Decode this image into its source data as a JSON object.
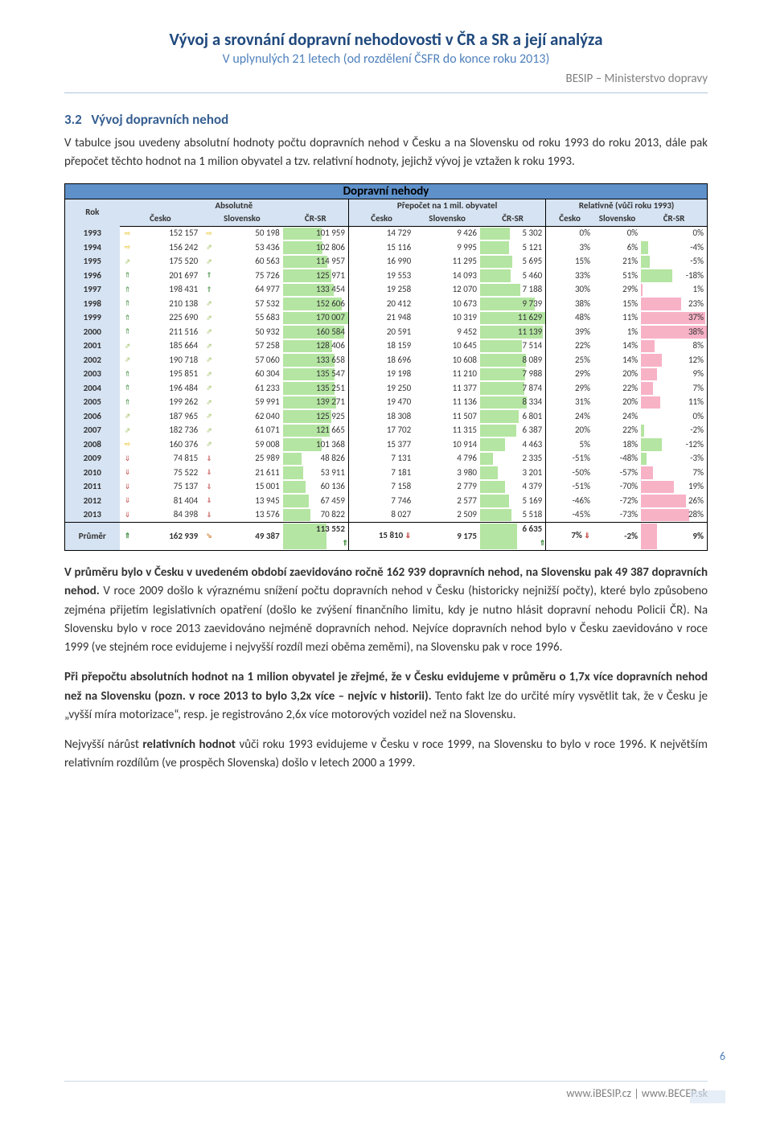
{
  "header": {
    "title": "Vývoj a srovnání dopravní nehodovosti v ČR a SR a její analýza",
    "subtitle": "V uplynulých 21 letech (od rozdělení ČSFR do konce roku 2013)",
    "org": "BESIP – Ministerstvo dopravy"
  },
  "section": {
    "num": "3.2",
    "title": "Vývoj dopravních nehod"
  },
  "para1": "V tabulce jsou uvedeny absolutní hodnoty počtu dopravních nehod v Česku a na Slovensku od roku 1993 do roku 2013, dále pak přepočet těchto hodnot na 1 milion obyvatel a tzv. relativní hodnoty, jejichž vývoj je vztažen k roku 1993.",
  "para2a": "V průměru bylo v Česku v uvedeném období zaevidováno ročně 162 939 dopravních nehod, na Slovensku pak 49 387 dopravních nehod.",
  "para2b": " V roce 2009 došlo k výraznému snížení počtu dopravních nehod v Česku (historicky nejnižší počty), které bylo způsobeno zejména přijetím legislativních opatření (došlo ke zvýšení finančního limitu, kdy je nutno hlásit dopravní nehodu Policii ČR). Na Slovensku bylo v roce 2013 zaevidováno nejméně dopravních nehod. Nejvíce dopravních nehod bylo v Česku zaevidováno v roce 1999 (ve stejném roce evidujeme i nejvyšší rozdíl mezi oběma zeměmi), na Slovensku pak v roce 1996.",
  "para3a": "Při přepočtu absolutních hodnot na 1 milion obyvatel je zřejmé, že v Česku evidujeme v průměru o 1,7x více dopravních nehod než na Slovensku (pozn. v roce 2013 to bylo 3,2x více – nejvíc v historii).",
  "para3b": " Tento fakt lze do určité míry vysvětlit tak, že v Česku je „vyšší míra motorizace“, resp. je registrováno 2,6x více motorových vozidel než na Slovensku.",
  "para4a": "Nejvyšší nárůst ",
  "para4b": "relativních hodnot",
  "para4c": " vůči roku 1993 evidujeme v Česku v roce 1999, na Slovensku to bylo v roce 1996. K největším relativním rozdílům (ve prospěch Slovenska) došlo v letech 2000 a 1999.",
  "page_num": "6",
  "footer": "www.iBESIP.cz | www.BECEP.sk",
  "table": {
    "title": "Dopravní nehody",
    "rok_label": "Rok",
    "groups": [
      "Absolutně",
      "Přepočet na 1 mil. obyvatel",
      "Relativně (vůči roku 1993)"
    ],
    "cols": [
      "Česko",
      "Slovensko",
      "ČR-SR",
      "Česko",
      "Slovensko",
      "ČR-SR",
      "Česko",
      "Slovensko",
      "ČR-SR"
    ],
    "avg_label": "Průměr",
    "bar_colors": {
      "green": "#b4e5a2",
      "pink": "#f7b2c6"
    },
    "arrow_colors": {
      "flat": "#e6b800",
      "up_soft": "#9fbf60",
      "up": "#3c8c3c",
      "down_soft": "#d99a5b",
      "down": "#c24444"
    },
    "max": {
      "crsr_abs": 170007,
      "crsr_per": 11629,
      "rel_diff": 38
    },
    "rows": [
      {
        "y": "1993",
        "a1": "⇨",
        "cz": "152 157",
        "a2": "⇨",
        "sk": "50 198",
        "d": "101 959",
        "pcz": "14 729",
        "psk": "9 426",
        "pd": "5 302",
        "rcz": "0%",
        "rsk": "0%",
        "rd": "0%",
        "rdv": 0
      },
      {
        "y": "1994",
        "a1": "⇨",
        "cz": "156 242",
        "a2": "⇗",
        "sk": "53 436",
        "d": "102 806",
        "pcz": "15 116",
        "psk": "9 995",
        "pd": "5 121",
        "rcz": "3%",
        "rsk": "6%",
        "rd": "-4%",
        "rdv": -4
      },
      {
        "y": "1995",
        "a1": "⇗",
        "cz": "175 520",
        "a2": "⇗",
        "sk": "60 563",
        "d": "114 957",
        "pcz": "16 990",
        "psk": "11 295",
        "pd": "5 695",
        "rcz": "15%",
        "rsk": "21%",
        "rd": "-5%",
        "rdv": -5
      },
      {
        "y": "1996",
        "a1": "⇑",
        "cz": "201 697",
        "a2": "⇑",
        "sk": "75 726",
        "d": "125 971",
        "pcz": "19 553",
        "psk": "14 093",
        "pd": "5 460",
        "rcz": "33%",
        "rsk": "51%",
        "rd": "-18%",
        "rdv": -18
      },
      {
        "y": "1997",
        "a1": "⇑",
        "cz": "198 431",
        "a2": "⇑",
        "sk": "64 977",
        "d": "133 454",
        "pcz": "19 258",
        "psk": "12 070",
        "pd": "7 188",
        "rcz": "30%",
        "rsk": "29%",
        "rd": "1%",
        "rdv": 1
      },
      {
        "y": "1998",
        "a1": "⇑",
        "cz": "210 138",
        "a2": "⇗",
        "sk": "57 532",
        "d": "152 606",
        "pcz": "20 412",
        "psk": "10 673",
        "pd": "9 739",
        "rcz": "38%",
        "rsk": "15%",
        "rd": "23%",
        "rdv": 23
      },
      {
        "y": "1999",
        "a1": "⇑",
        "cz": "225 690",
        "a2": "⇗",
        "sk": "55 683",
        "d": "170 007",
        "pcz": "21 948",
        "psk": "10 319",
        "pd": "11 629",
        "rcz": "48%",
        "rsk": "11%",
        "rd": "37%",
        "rdv": 37
      },
      {
        "y": "2000",
        "a1": "⇑",
        "cz": "211 516",
        "a2": "⇗",
        "sk": "50 932",
        "d": "160 584",
        "pcz": "20 591",
        "psk": "9 452",
        "pd": "11 139",
        "rcz": "39%",
        "rsk": "1%",
        "rd": "38%",
        "rdv": 38
      },
      {
        "y": "2001",
        "a1": "⇗",
        "cz": "185 664",
        "a2": "⇗",
        "sk": "57 258",
        "d": "128 406",
        "pcz": "18 159",
        "psk": "10 645",
        "pd": "7 514",
        "rcz": "22%",
        "rsk": "14%",
        "rd": "8%",
        "rdv": 8
      },
      {
        "y": "2002",
        "a1": "⇗",
        "cz": "190 718",
        "a2": "⇗",
        "sk": "57 060",
        "d": "133 658",
        "pcz": "18 696",
        "psk": "10 608",
        "pd": "8 089",
        "rcz": "25%",
        "rsk": "14%",
        "rd": "12%",
        "rdv": 12
      },
      {
        "y": "2003",
        "a1": "⇑",
        "cz": "195 851",
        "a2": "⇗",
        "sk": "60 304",
        "d": "135 547",
        "pcz": "19 198",
        "psk": "11 210",
        "pd": "7 988",
        "rcz": "29%",
        "rsk": "20%",
        "rd": "9%",
        "rdv": 9
      },
      {
        "y": "2004",
        "a1": "⇑",
        "cz": "196 484",
        "a2": "⇗",
        "sk": "61 233",
        "d": "135 251",
        "pcz": "19 250",
        "psk": "11 377",
        "pd": "7 874",
        "rcz": "29%",
        "rsk": "22%",
        "rd": "7%",
        "rdv": 7
      },
      {
        "y": "2005",
        "a1": "⇑",
        "cz": "199 262",
        "a2": "⇗",
        "sk": "59 991",
        "d": "139 271",
        "pcz": "19 470",
        "psk": "11 136",
        "pd": "8 334",
        "rcz": "31%",
        "rsk": "20%",
        "rd": "11%",
        "rdv": 11
      },
      {
        "y": "2006",
        "a1": "⇗",
        "cz": "187 965",
        "a2": "⇗",
        "sk": "62 040",
        "d": "125 925",
        "pcz": "18 308",
        "psk": "11 507",
        "pd": "6 801",
        "rcz": "24%",
        "rsk": "24%",
        "rd": "0%",
        "rdv": 0
      },
      {
        "y": "2007",
        "a1": "⇗",
        "cz": "182 736",
        "a2": "⇗",
        "sk": "61 071",
        "d": "121 665",
        "pcz": "17 702",
        "psk": "11 315",
        "pd": "6 387",
        "rcz": "20%",
        "rsk": "22%",
        "rd": "-2%",
        "rdv": -2
      },
      {
        "y": "2008",
        "a1": "⇨",
        "cz": "160 376",
        "a2": "⇗",
        "sk": "59 008",
        "d": "101 368",
        "pcz": "15 377",
        "psk": "10 914",
        "pd": "4 463",
        "rcz": "5%",
        "rsk": "18%",
        "rd": "-12%",
        "rdv": -12
      },
      {
        "y": "2009",
        "a1": "⇓",
        "cz": "74 815",
        "a2": "⇓",
        "sk": "25 989",
        "d": "48 826",
        "pcz": "7 131",
        "psk": "4 796",
        "pd": "2 335",
        "rcz": "-51%",
        "rsk": "-48%",
        "rd": "-3%",
        "rdv": -3
      },
      {
        "y": "2010",
        "a1": "⇓",
        "cz": "75 522",
        "a2": "⇓",
        "sk": "21 611",
        "d": "53 911",
        "pcz": "7 181",
        "psk": "3 980",
        "pd": "3 201",
        "rcz": "-50%",
        "rsk": "-57%",
        "rd": "7%",
        "rdv": 7
      },
      {
        "y": "2011",
        "a1": "⇓",
        "cz": "75 137",
        "a2": "⇓",
        "sk": "15 001",
        "d": "60 136",
        "pcz": "7 158",
        "psk": "2 779",
        "pd": "4 379",
        "rcz": "-51%",
        "rsk": "-70%",
        "rd": "19%",
        "rdv": 19
      },
      {
        "y": "2012",
        "a1": "⇓",
        "cz": "81 404",
        "a2": "⇓",
        "sk": "13 945",
        "d": "67 459",
        "pcz": "7 746",
        "psk": "2 577",
        "pd": "5 169",
        "rcz": "-46%",
        "rsk": "-72%",
        "rd": "26%",
        "rdv": 26
      },
      {
        "y": "2013",
        "a1": "⇓",
        "cz": "84 398",
        "a2": "⇓",
        "sk": "13 576",
        "d": "70 822",
        "pcz": "8 027",
        "psk": "2 509",
        "pd": "5 518",
        "rcz": "-45%",
        "rsk": "-73%",
        "rd": "28%",
        "rdv": 28
      }
    ],
    "avg": {
      "y": "Průměr",
      "a1": "⇑",
      "cz": "162 939",
      "a2": "⇘",
      "sk": "49 387",
      "d": "113 552",
      "ad": "⇑",
      "pcz": "15 810",
      "apc": "⇓",
      "psk": "9 175",
      "pd": "6 635",
      "apd": "⇑",
      "rcz": "7%",
      "arc": "⇓",
      "rsk": "-2%",
      "rd": "9%",
      "rdv": 9
    }
  }
}
